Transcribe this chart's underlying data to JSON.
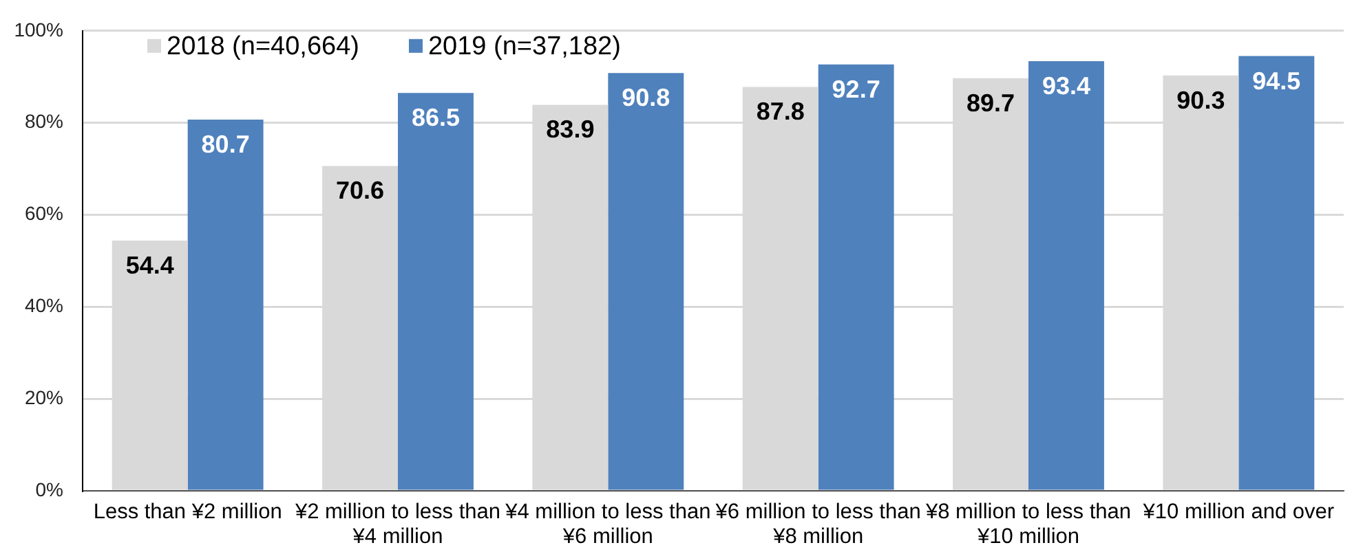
{
  "chart_data": {
    "type": "bar",
    "categories": [
      "Less than ¥2 million",
      "¥2 million to less than ¥4 million",
      "¥4 million to less than ¥6 million",
      "¥6 million to less than ¥8 million",
      "¥8 million to less than ¥10 million",
      "¥10 million and over"
    ],
    "series": [
      {
        "name": "2018 (n=40,664)",
        "color": "#d9d9d9",
        "values": [
          54.4,
          70.6,
          83.9,
          87.8,
          89.7,
          90.3
        ]
      },
      {
        "name": "2019 (n=37,182)",
        "color": "#4f81bd",
        "values": [
          80.7,
          86.5,
          90.8,
          92.7,
          93.4,
          94.5
        ]
      }
    ],
    "ylim": [
      0,
      100
    ],
    "yticks": [
      {
        "value": 0,
        "label": "0%"
      },
      {
        "value": 20,
        "label": "20%"
      },
      {
        "value": 40,
        "label": "40%"
      },
      {
        "value": 60,
        "label": "60%"
      },
      {
        "value": 80,
        "label": "80%"
      },
      {
        "value": 100,
        "label": "100%"
      }
    ],
    "grid": "y",
    "legend": "top left",
    "data_labels": true
  }
}
